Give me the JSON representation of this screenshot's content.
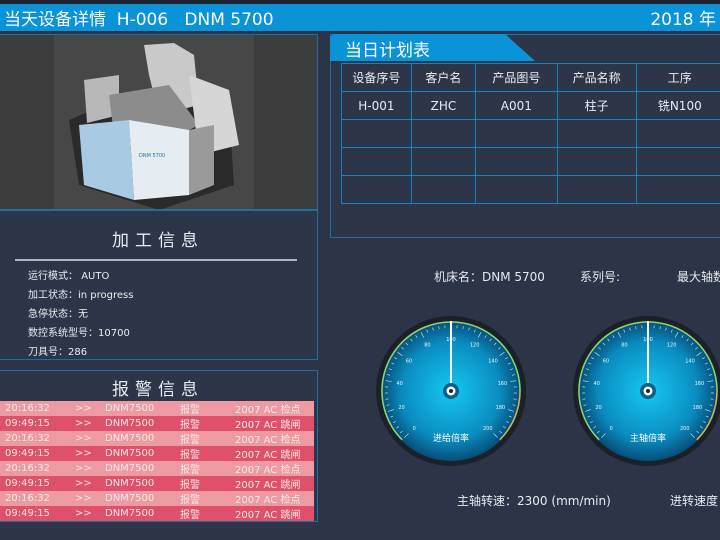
{
  "header": {
    "title": "当天设备详情  H-006   DNM 5700",
    "date": "2018 年"
  },
  "machine_image": {
    "label": "DNM 5700"
  },
  "processing": {
    "title": "加工信息",
    "items": [
      {
        "label": "运行模式：",
        "value": "AUTO"
      },
      {
        "label": "加工状态：",
        "value": "in progress"
      },
      {
        "label": "急停状态：",
        "value": "无"
      },
      {
        "label": "数控系统型号：",
        "value": "10700"
      },
      {
        "label": "刀具号：",
        "value": "286"
      }
    ]
  },
  "alarm": {
    "title": "报警信息",
    "rows": [
      [
        "20:16:32",
        ">>",
        "DNM7500",
        "报警",
        "2007  AC 检点"
      ],
      [
        "09:49:15",
        ">>",
        "DNM7500",
        "报警",
        "2007  AC 跳闸"
      ],
      [
        "20:16:32",
        ">>",
        "DNM7500",
        "报警",
        "2007  AC 检点"
      ],
      [
        "09:49:15",
        ">>",
        "DNM7500",
        "报警",
        "2007  AC 跳闸"
      ],
      [
        "20:16:32",
        ">>",
        "DNM7500",
        "报警",
        "2007  AC 检点"
      ],
      [
        "09:49:15",
        ">>",
        "DNM7500",
        "报警",
        "2007  AC 跳闸"
      ],
      [
        "20:16:32",
        ">>",
        "DNM7500",
        "报警",
        "2007  AC 检点"
      ],
      [
        "09:49:15",
        ">>",
        "DNM7500",
        "报警",
        "2007  AC 跳闸"
      ]
    ]
  },
  "plan": {
    "title": "当日计划表",
    "columns": [
      "设备序号",
      "客户名",
      "产品图号",
      "产品名称",
      "工序"
    ],
    "rows": [
      [
        "H-001",
        "ZHC",
        "A001",
        "柱子",
        "铣N100"
      ],
      [
        "",
        "",
        "",
        "",
        ""
      ],
      [
        "",
        "",
        "",
        "",
        ""
      ],
      [
        "",
        "",
        "",
        "",
        ""
      ]
    ]
  },
  "machine_info": {
    "name_label": "机床名：",
    "name": "DNM 5700",
    "series_label": "系列号:",
    "series": "",
    "max_label": "最大轴数"
  },
  "gauges": [
    {
      "label": "进给倍率",
      "value": 100,
      "min": 0,
      "max": 200,
      "ticks": [
        "0",
        "20",
        "40",
        "60",
        "80",
        "100",
        "120",
        "140",
        "160",
        "180",
        "200"
      ]
    },
    {
      "label": "主轴倍率",
      "value": 100,
      "min": 0,
      "max": 200,
      "ticks": [
        "0",
        "20",
        "40",
        "60",
        "80",
        "100",
        "120",
        "140",
        "160",
        "180",
        "200"
      ]
    }
  ],
  "spindle": {
    "label": "主轴转速：",
    "value": "2300",
    "unit": "(mm/min)"
  },
  "feed": {
    "label": "进转速度"
  },
  "colors": {
    "header": "#0a93d7",
    "alarm_light": "#ee9aa3",
    "alarm_dark": "#df516b",
    "background": "#2c3547"
  }
}
